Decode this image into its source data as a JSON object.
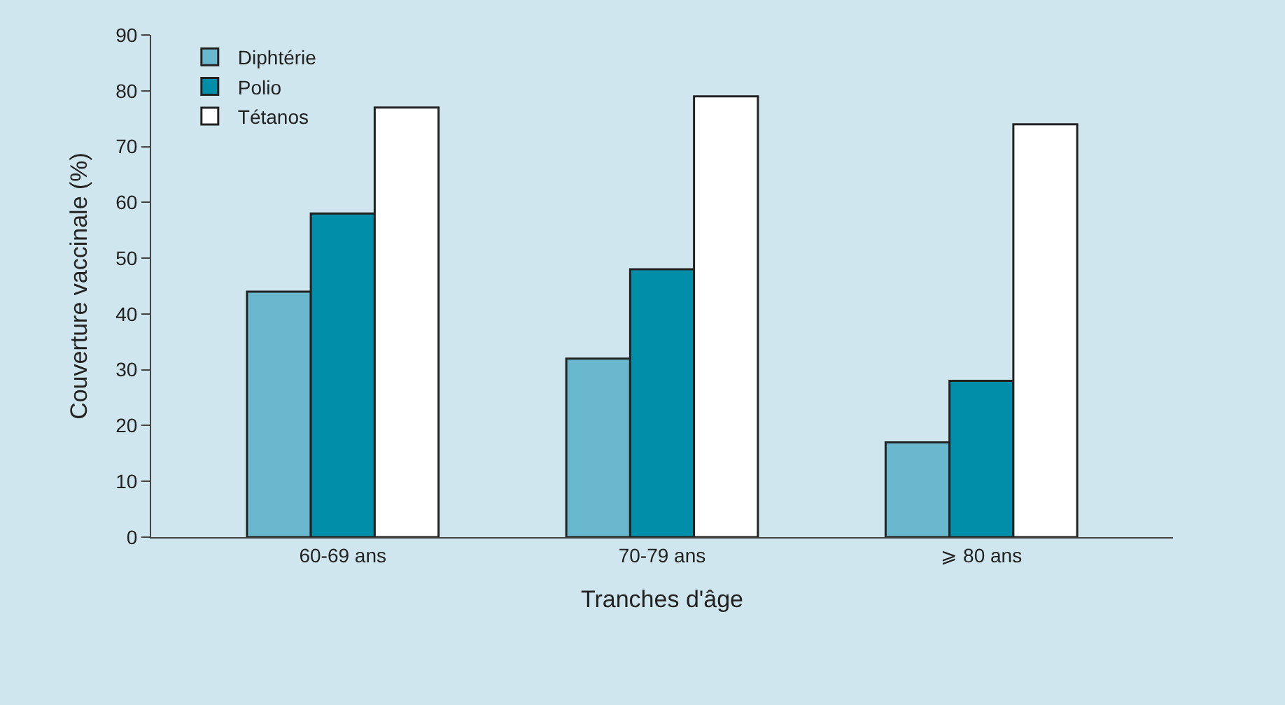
{
  "chart_data": {
    "type": "bar",
    "xlabel": "Tranches d'âge",
    "ylabel": "Couverture vaccinale (%)",
    "categories": [
      "60-69 ans",
      "70-79 ans",
      "⩾ 80 ans"
    ],
    "series": [
      {
        "name": "Diphtérie",
        "color": "#69b8ce",
        "values": [
          44,
          32,
          17
        ]
      },
      {
        "name": "Polio",
        "color": "#008ea9",
        "values": [
          58,
          48,
          28
        ]
      },
      {
        "name": "Tétanos",
        "color": "#ffffff",
        "values": [
          77,
          79,
          74
        ]
      }
    ],
    "ylim": [
      0,
      90
    ],
    "yticks": [
      0,
      10,
      20,
      30,
      40,
      50,
      60,
      70,
      80,
      90
    ],
    "grid": false,
    "legend": "top left"
  }
}
